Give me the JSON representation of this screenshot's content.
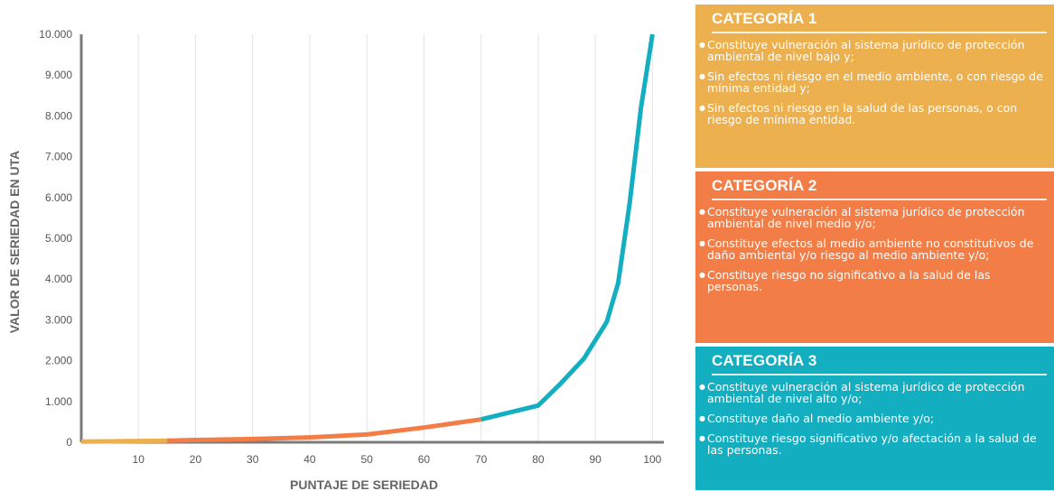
{
  "chart_data": {
    "type": "line",
    "xlabel": "PUNTAJE DE SERIEDAD",
    "ylabel": "VALOR DE SERIEDAD EN UTA",
    "xlim": [
      0,
      102
    ],
    "ylim": [
      0,
      10000
    ],
    "x_ticks": [
      "10",
      "20",
      "30",
      "40",
      "50",
      "60",
      "70",
      "80",
      "90",
      "100"
    ],
    "y_ticks": [
      "0",
      "1.000",
      "2.000",
      "3.000",
      "4.000",
      "5.000",
      "6.000",
      "7.000",
      "8.000",
      "9.000",
      "10.000"
    ],
    "grid": "vertical",
    "series": [
      {
        "color": "#EDB04F",
        "x": [
          0,
          5,
          10,
          15
        ],
        "y": [
          15,
          22,
          30,
          40
        ]
      },
      {
        "color": "#F27D46",
        "x": [
          15,
          20,
          30,
          40,
          50,
          60,
          70
        ],
        "y": [
          40,
          55,
          80,
          120,
          190,
          360,
          560
        ]
      },
      {
        "color": "#14AEC1",
        "x": [
          70,
          80,
          84,
          88,
          92,
          94,
          96,
          98,
          100
        ],
        "y": [
          560,
          900,
          1450,
          2050,
          2950,
          3900,
          5850,
          8200,
          10000
        ]
      }
    ]
  },
  "categories": [
    {
      "title": "CATEGORÍA 1",
      "color": "#EDB04F",
      "items": [
        "Constituye vulneración al sistema jurídico de protección ambiental de nivel bajo y;",
        "Sin efectos ni riesgo en el medio ambiente, o con riesgo de mínima entidad y;",
        "Sin efectos ni riesgo en la salud de las personas, o con riesgo de mínima entidad."
      ]
    },
    {
      "title": "CATEGORÍA 2",
      "color": "#F27D46",
      "items": [
        "Constituye vulneración al sistema jurídico de protección ambiental de nivel medio y/o;",
        "Constituye efectos al medio ambiente no constitutivos de daño ambiental y/o riesgo al medio ambiente y/o;",
        "Constituye riesgo no significativo a la salud de las personas."
      ]
    },
    {
      "title": "CATEGORÍA 3",
      "color": "#14AEC1",
      "items": [
        "Constituye vulneración al sistema jurídico de protección ambiental de nivel alto y/o;",
        "Constituye daño al medio ambiente y/o;",
        "Constituye riesgo significativo y/o afectación a la salud de las personas."
      ]
    }
  ]
}
